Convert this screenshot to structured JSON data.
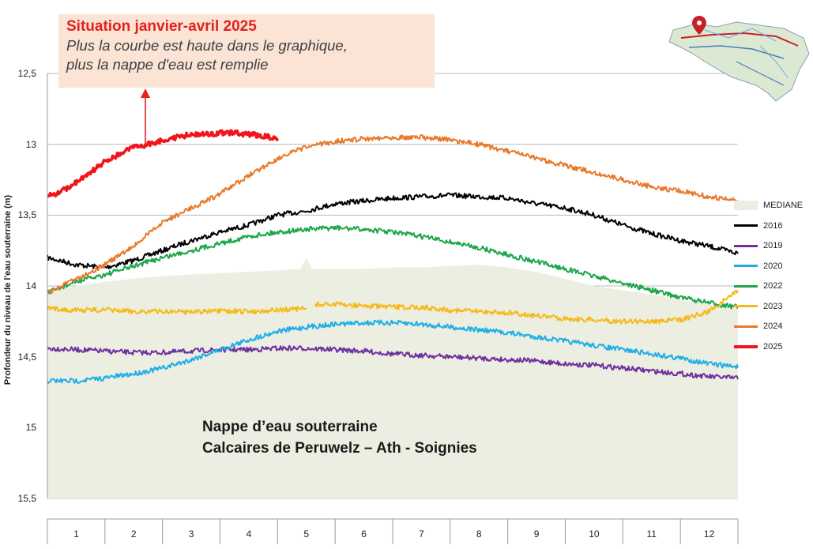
{
  "callout": {
    "title": "Situation janvier-avril 2025",
    "line1": "Plus la courbe est haute dans le graphique,",
    "line2": "plus la nappe d'eau est remplie"
  },
  "annotation": {
    "line1": "Nappe d’eau souterraine",
    "line2": "Calcaires de Peruwelz – Ath - Soignies"
  },
  "map_icon": "wallonia-map-with-location-pin",
  "colors": {
    "mediane": "#ebeee0",
    "2016": "#000000",
    "2019": "#7030a0",
    "2020": "#1faee8",
    "2022": "#1ea64b",
    "2023": "#f7b918",
    "2024": "#e7792b",
    "2025": "#f2141b",
    "callout_bg": "#fbe3d6",
    "callout_title": "#e32219"
  },
  "chart_data": {
    "type": "line",
    "title": "",
    "xlabel": "",
    "ylabel": "Profondeur du niveau de l'eau souterraine (m)",
    "y_inverted": true,
    "ylim": [
      12.5,
      15.5
    ],
    "y_ticks": [
      "12,5",
      "13",
      "13,5",
      "14",
      "14,5",
      "15",
      "15,5"
    ],
    "y_tick_values": [
      12.5,
      13,
      13.5,
      14,
      14.5,
      15,
      15.5
    ],
    "x_range": [
      0,
      12
    ],
    "categories": [
      "1",
      "2",
      "3",
      "4",
      "5",
      "6",
      "7",
      "8",
      "9",
      "10",
      "11",
      "12"
    ],
    "legend_position": "right",
    "gridlines": "horizontal",
    "series": [
      {
        "name": "MEDIANE",
        "kind": "area",
        "color": "#ebeee0",
        "x": [
          0,
          0.5,
          1,
          1.5,
          2,
          2.5,
          3,
          3.5,
          4,
          4.4,
          4.5,
          4.6,
          5,
          5.5,
          6,
          6.5,
          7,
          7.5,
          8,
          8.5,
          9,
          9.5,
          10,
          10.5,
          11,
          11.5,
          12
        ],
        "y": [
          14.05,
          14.0,
          13.97,
          13.95,
          13.93,
          13.92,
          13.91,
          13.9,
          13.89,
          13.88,
          13.8,
          13.88,
          13.88,
          13.88,
          13.87,
          13.87,
          13.86,
          13.85,
          13.87,
          13.9,
          13.95,
          14.0,
          14.03,
          14.06,
          14.1,
          14.13,
          14.16
        ]
      },
      {
        "name": "2016",
        "color": "#000000",
        "x": [
          0,
          0.5,
          1,
          1.5,
          2,
          2.5,
          3,
          3.5,
          4,
          4.5,
          5,
          5.5,
          6,
          6.5,
          7,
          7.5,
          8,
          8.5,
          9,
          9.5,
          10,
          10.5,
          11,
          11.5,
          12
        ],
        "y": [
          13.8,
          13.85,
          13.87,
          13.82,
          13.75,
          13.68,
          13.62,
          13.57,
          13.5,
          13.47,
          13.42,
          13.4,
          13.38,
          13.37,
          13.36,
          13.37,
          13.38,
          13.42,
          13.45,
          13.5,
          13.57,
          13.63,
          13.68,
          13.72,
          13.77
        ]
      },
      {
        "name": "2019",
        "color": "#7030a0",
        "x": [
          0,
          0.5,
          1,
          1.5,
          2,
          2.5,
          3,
          3.5,
          4,
          4.5,
          5,
          5.5,
          6,
          6.5,
          7,
          7.5,
          8,
          8.5,
          9,
          9.5,
          10,
          10.5,
          11,
          11.5,
          12
        ],
        "y": [
          14.44,
          14.45,
          14.46,
          14.47,
          14.47,
          14.46,
          14.45,
          14.45,
          14.44,
          14.44,
          14.45,
          14.46,
          14.48,
          14.49,
          14.5,
          14.51,
          14.52,
          14.53,
          14.55,
          14.56,
          14.58,
          14.6,
          14.62,
          14.64,
          14.65
        ]
      },
      {
        "name": "2020",
        "color": "#1faee8",
        "x": [
          0,
          0.5,
          1,
          1.5,
          2,
          2.5,
          3,
          3.5,
          4,
          4.5,
          5,
          5.5,
          6,
          6.5,
          7,
          7.5,
          8,
          8.5,
          9,
          9.5,
          10,
          10.5,
          11,
          11.5,
          12
        ],
        "y": [
          14.67,
          14.67,
          14.65,
          14.62,
          14.58,
          14.52,
          14.45,
          14.38,
          14.32,
          14.29,
          14.27,
          14.26,
          14.26,
          14.27,
          14.29,
          14.31,
          14.33,
          14.36,
          14.39,
          14.42,
          14.45,
          14.48,
          14.51,
          14.55,
          14.57
        ]
      },
      {
        "name": "2022",
        "color": "#1ea64b",
        "x": [
          0,
          0.5,
          1,
          1.5,
          2,
          2.5,
          3,
          3.5,
          4,
          4.5,
          5,
          5.5,
          6,
          6.5,
          7,
          7.5,
          8,
          8.5,
          9,
          9.5,
          10,
          10.5,
          11,
          11.5,
          12
        ],
        "y": [
          14.05,
          13.97,
          13.92,
          13.86,
          13.8,
          13.75,
          13.7,
          13.65,
          13.62,
          13.6,
          13.59,
          13.6,
          13.62,
          13.65,
          13.69,
          13.73,
          13.78,
          13.83,
          13.88,
          13.93,
          13.98,
          14.03,
          14.08,
          14.12,
          14.15
        ]
      },
      {
        "name": "2023",
        "color": "#f7b918",
        "gap_after_x": 4.5,
        "x": [
          0,
          0.5,
          1,
          1.5,
          2,
          2.5,
          3,
          3.5,
          4,
          4.5,
          4.7,
          5,
          5.5,
          6,
          6.5,
          7,
          7.5,
          8,
          8.5,
          9,
          9.5,
          10,
          10.5,
          11,
          11.5,
          12
        ],
        "y": [
          14.16,
          14.17,
          14.17,
          14.18,
          14.18,
          14.18,
          14.18,
          14.18,
          14.17,
          14.16,
          14.13,
          14.13,
          14.14,
          14.15,
          14.15,
          14.17,
          14.18,
          14.19,
          14.21,
          14.23,
          14.24,
          14.25,
          14.25,
          14.24,
          14.18,
          14.03
        ]
      },
      {
        "name": "2024",
        "color": "#e7792b",
        "x": [
          0,
          0.5,
          1,
          1.5,
          2,
          2.5,
          3,
          3.5,
          4,
          4.5,
          5,
          5.5,
          6,
          6.5,
          7,
          7.5,
          8,
          8.5,
          9,
          9.5,
          10,
          10.5,
          11,
          11.5,
          12
        ],
        "y": [
          14.05,
          13.95,
          13.85,
          13.72,
          13.55,
          13.45,
          13.35,
          13.22,
          13.1,
          13.02,
          12.98,
          12.96,
          12.95,
          12.95,
          12.97,
          13.0,
          13.05,
          13.1,
          13.15,
          13.2,
          13.25,
          13.3,
          13.33,
          13.37,
          13.4
        ]
      },
      {
        "name": "2025",
        "color": "#f2141b",
        "x": [
          0,
          0.25,
          0.5,
          0.75,
          1,
          1.25,
          1.5,
          1.75,
          2,
          2.25,
          2.5,
          2.75,
          3,
          3.25,
          3.5,
          3.75,
          4
        ],
        "y": [
          13.37,
          13.33,
          13.27,
          13.2,
          13.12,
          13.07,
          13.02,
          13.0,
          12.97,
          12.95,
          12.93,
          12.93,
          12.92,
          12.92,
          12.93,
          12.94,
          12.96
        ]
      }
    ]
  }
}
